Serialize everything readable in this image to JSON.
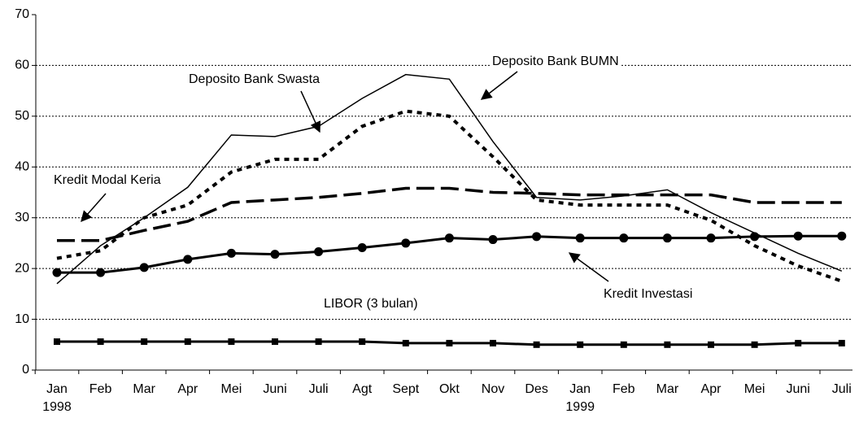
{
  "chart_data": {
    "type": "line",
    "categories": [
      "Jan\n1998",
      "Feb",
      "Mar",
      "Apr",
      "Mei",
      "Juni",
      "Juli",
      "Agt",
      "Sept",
      "Okt",
      "Nov",
      "Des",
      "Jan\n1999",
      "Feb",
      "Mar",
      "Apr",
      "Mei",
      "Juni",
      "Juli"
    ],
    "series": [
      {
        "name": "Deposito Bank BUMN",
        "color": "#000000",
        "dash": "solid",
        "marker": null,
        "values": [
          17,
          24.5,
          30,
          36,
          46.3,
          46,
          48,
          53.5,
          58.2,
          57.3,
          45,
          34,
          33.5,
          34.3,
          35.5,
          31,
          27,
          23,
          19.5
        ]
      },
      {
        "name": "Deposito Bank Swasta",
        "color": "#000000",
        "dash": "dotted",
        "marker": null,
        "values": [
          22,
          23.5,
          30,
          32.5,
          39,
          41.5,
          41.5,
          48,
          51,
          50,
          42,
          33.5,
          32.5,
          32.5,
          32.5,
          29.5,
          24.5,
          20.5,
          17.5
        ]
      },
      {
        "name": "Kredit Modal Keria",
        "color": "#000000",
        "dash": "dashed",
        "marker": null,
        "values": [
          25.5,
          25.5,
          27.5,
          29.3,
          33,
          33.5,
          34,
          34.8,
          35.8,
          35.8,
          35,
          34.8,
          34.5,
          34.5,
          34.5,
          34.5,
          33,
          33,
          33
        ]
      },
      {
        "name": "Kredit Investasi",
        "color": "#000000",
        "dash": "solid",
        "marker": "circle",
        "values": [
          19.2,
          19.2,
          20.2,
          21.8,
          23,
          22.8,
          23.3,
          24.1,
          25,
          26,
          25.7,
          26.3,
          26,
          26,
          26,
          26,
          26.3,
          26.4,
          26.4
        ]
      },
      {
        "name": "LIBOR (3 bulan)",
        "color": "#000000",
        "dash": "solid",
        "marker": "square",
        "values": [
          5.6,
          5.6,
          5.6,
          5.6,
          5.6,
          5.6,
          5.6,
          5.6,
          5.3,
          5.3,
          5.3,
          5.0,
          5.0,
          5.0,
          5.0,
          5.0,
          5.0,
          5.3,
          5.3
        ]
      }
    ],
    "ylim": [
      0,
      70
    ],
    "yticks": [
      0,
      10,
      20,
      30,
      40,
      50,
      60,
      70
    ],
    "grid": true
  }
}
